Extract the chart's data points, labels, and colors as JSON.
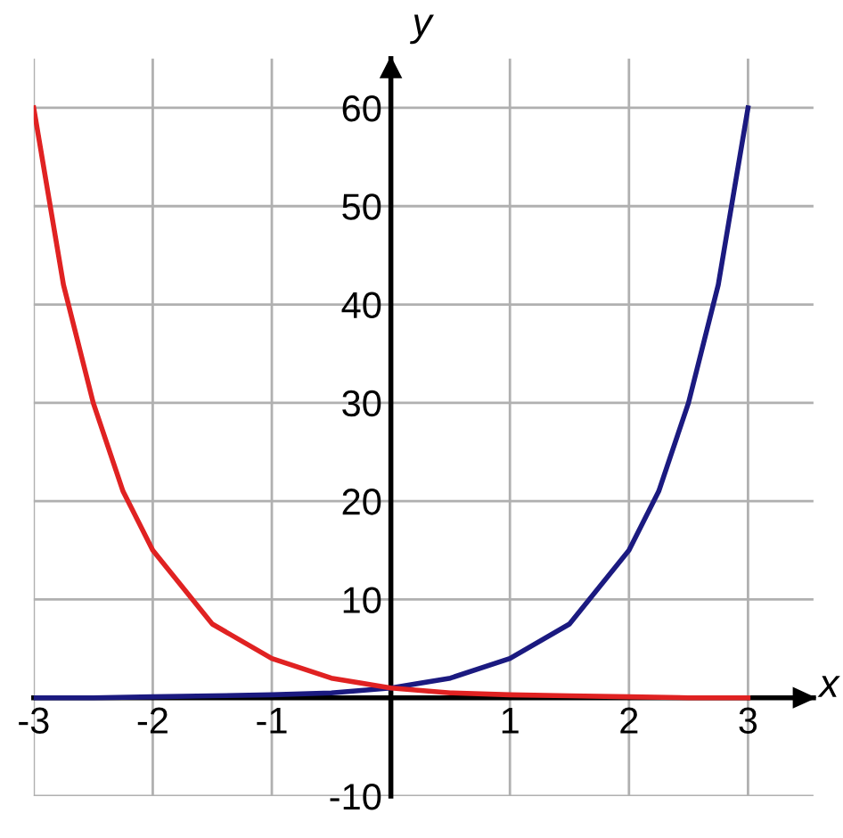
{
  "chart_data": {
    "type": "line",
    "xlabel": "x",
    "ylabel": "y",
    "xlim": [
      -3,
      3.55
    ],
    "ylim": [
      -10,
      65
    ],
    "xticks": [
      -3,
      -2,
      -1,
      1,
      2,
      3
    ],
    "yticks": [
      -10,
      10,
      20,
      30,
      40,
      50,
      60
    ],
    "grid": true,
    "legend": false,
    "marker": "none",
    "line_style": "solid",
    "series": [
      {
        "color": "#1b1a80",
        "x": [
          -3,
          -2.5,
          -2,
          -1.5,
          -1,
          -0.5,
          0,
          0.5,
          1,
          1.5,
          2,
          2.25,
          2.5,
          2.75,
          3
        ],
        "values": [
          0,
          0,
          0.1,
          0.2,
          0.3,
          0.5,
          1,
          2,
          4,
          7.5,
          15,
          21,
          30,
          42,
          60
        ]
      },
      {
        "color": "#e02222",
        "x": [
          -3,
          -2.75,
          -2.5,
          -2.25,
          -2,
          -1.5,
          -1,
          -0.5,
          0,
          0.5,
          1,
          1.5,
          2,
          2.5,
          3
        ],
        "values": [
          60,
          42,
          30,
          21,
          15,
          7.5,
          4,
          2,
          1,
          0.5,
          0.3,
          0.2,
          0.1,
          0,
          0
        ]
      }
    ]
  }
}
